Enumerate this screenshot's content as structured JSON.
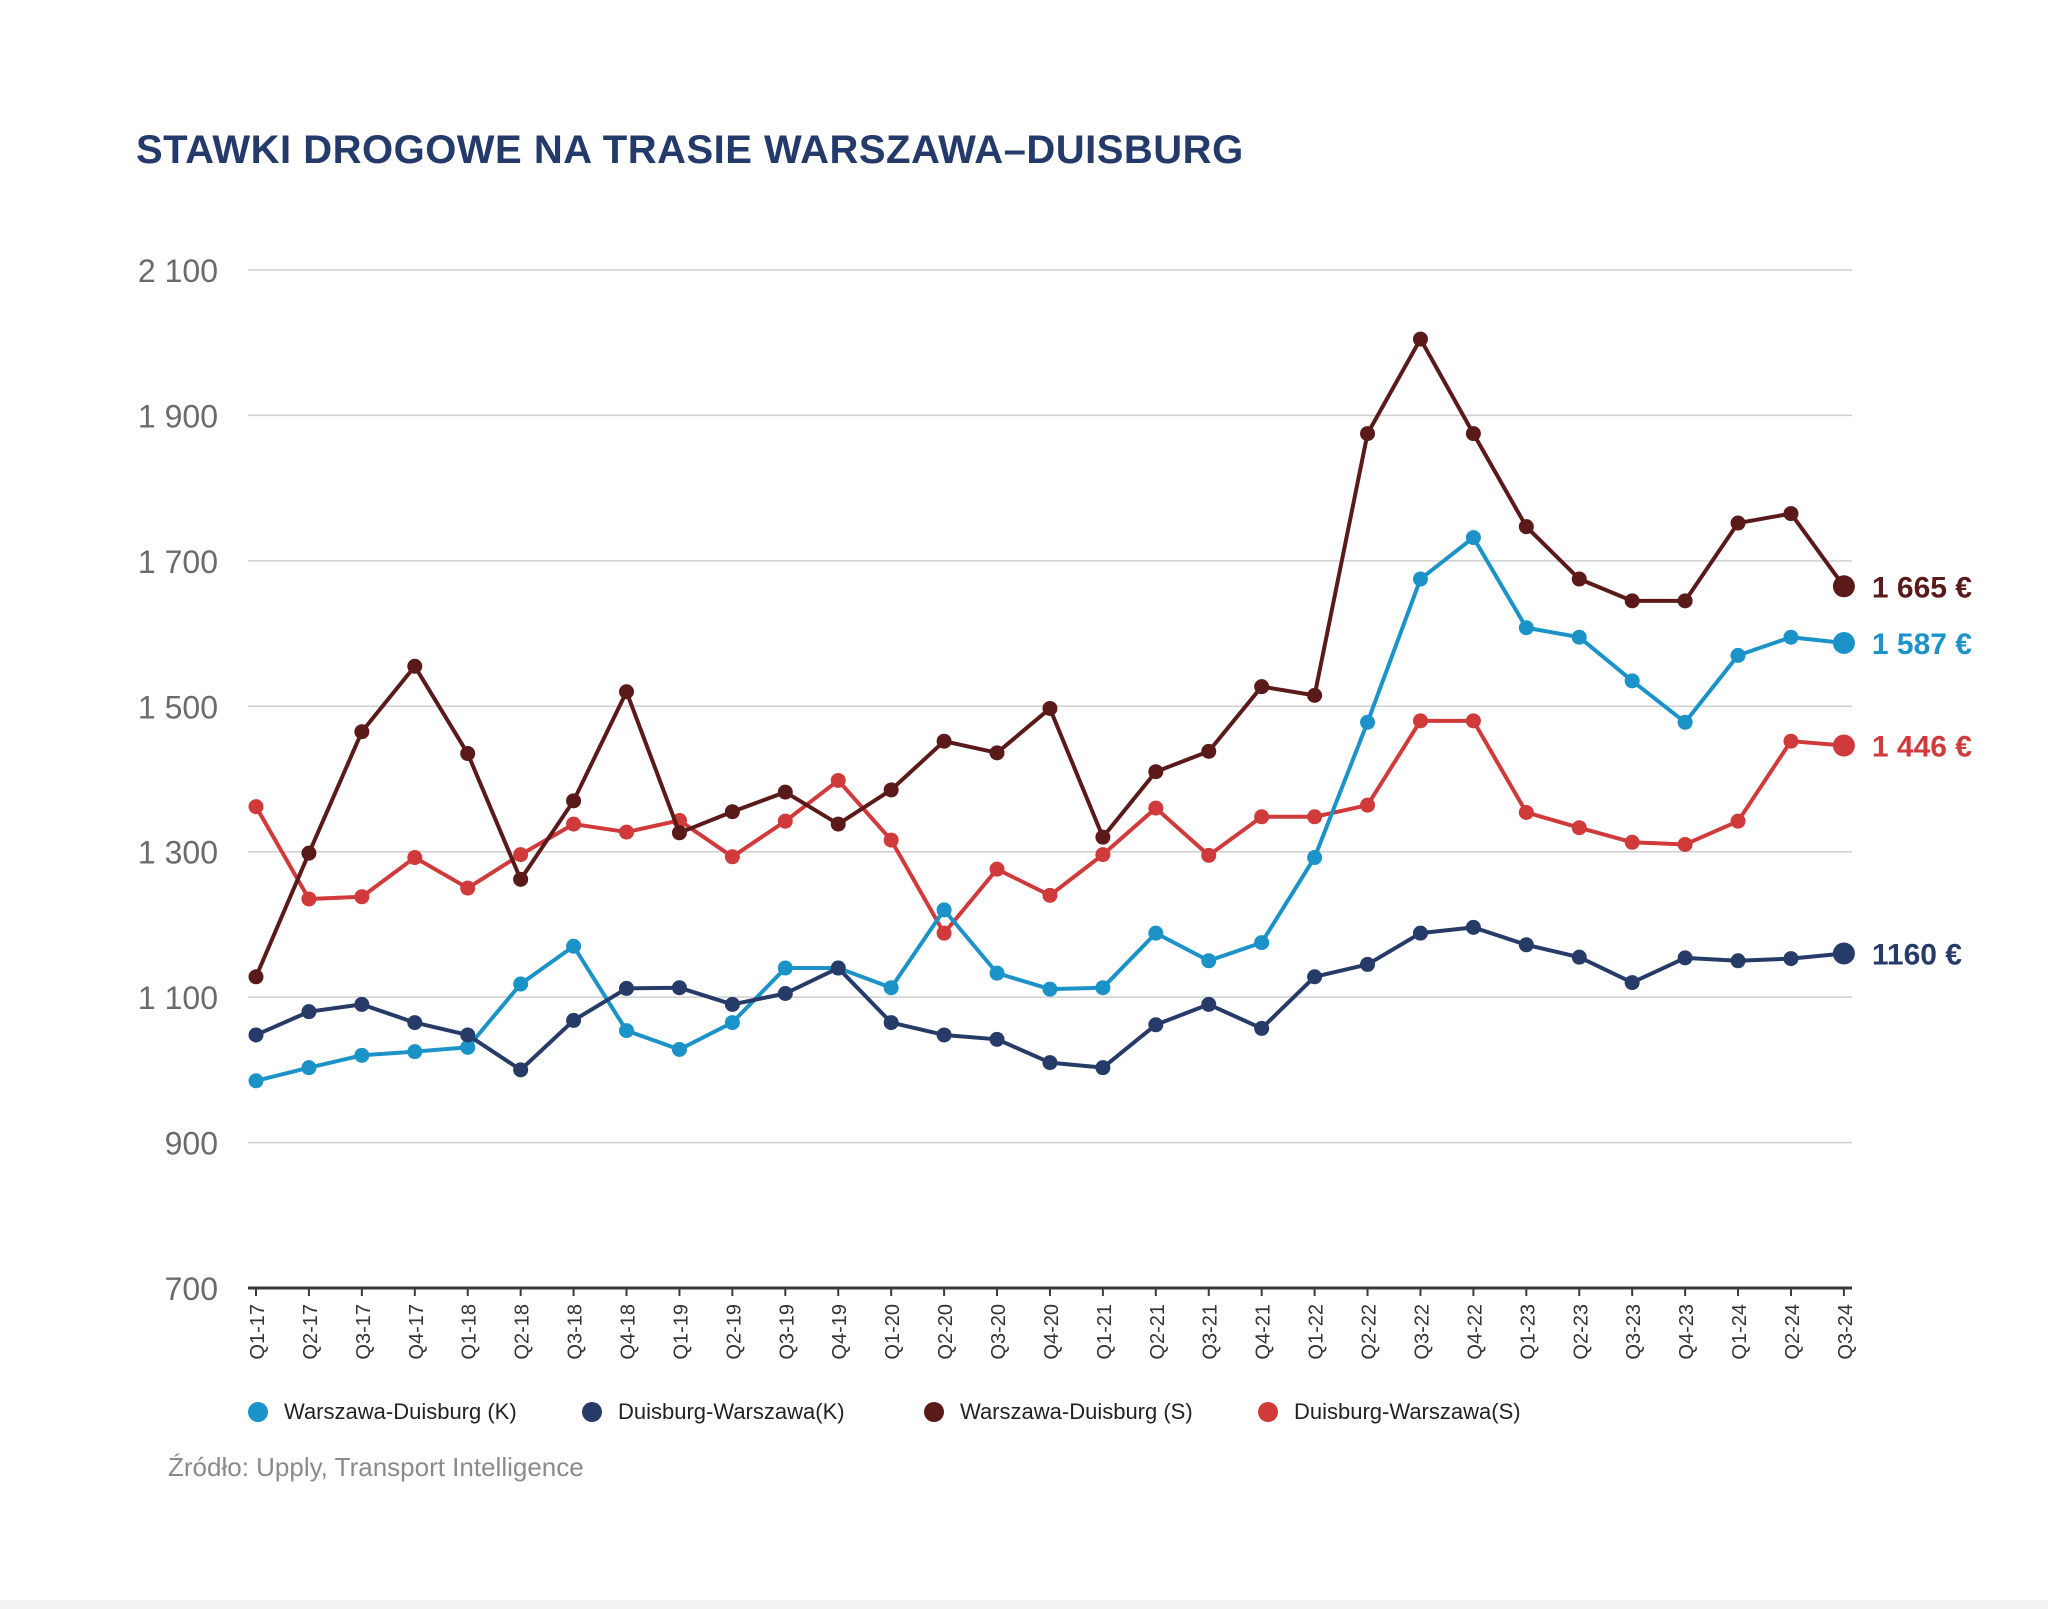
{
  "title": "STAWKI DROGOWE NA TRASIE WARSZAWA–DUISBURG",
  "source": "Źródło: Upply, Transport Intelligence",
  "legend": [
    {
      "label": "Warszawa-Duisburg (K)",
      "color": "#1B93C8"
    },
    {
      "label": "Duisburg-Warszawa(K)",
      "color": "#263B68"
    },
    {
      "label": "Warszawa-Duisburg (S)",
      "color": "#5B1A1A"
    },
    {
      "label": "Duisburg-Warszawa(S)",
      "color": "#D13A3A"
    }
  ],
  "chart_data": {
    "type": "line",
    "title": "STAWKI DROGOWE NA TRASIE WARSZAWA–DUISBURG",
    "xlabel": "",
    "ylabel": "",
    "ylim": [
      700,
      2100
    ],
    "yticks": [
      700,
      900,
      1100,
      1300,
      1500,
      1700,
      1900,
      2100
    ],
    "ytick_labels": [
      "700",
      "900",
      "1 100",
      "1 300",
      "1 500",
      "1 700",
      "1 900",
      "2 100"
    ],
    "grid": true,
    "legend_position": "bottom",
    "categories": [
      "Q1-17",
      "Q2-17",
      "Q3-17",
      "Q4-17",
      "Q1-18",
      "Q2-18",
      "Q3-18",
      "Q4-18",
      "Q1-19",
      "Q2-19",
      "Q3-19",
      "Q4-19",
      "Q1-20",
      "Q2-20",
      "Q3-20",
      "Q4-20",
      "Q1-21",
      "Q2-21",
      "Q3-21",
      "Q4-21",
      "Q1-22",
      "Q2-22",
      "Q3-22",
      "Q4-22",
      "Q1-23",
      "Q2-23",
      "Q3-23",
      "Q4-23",
      "Q1-24",
      "Q2-24",
      "Q3-24"
    ],
    "series": [
      {
        "name": "Warszawa-Duisburg (K)",
        "color": "#1B93C8",
        "end_label": "1 587 €",
        "values": [
          985,
          1003,
          1020,
          1025,
          1031,
          1118,
          1170,
          1054,
          1028,
          1065,
          1140,
          1140,
          1113,
          1220,
          1133,
          1111,
          1113,
          1188,
          1150,
          1175,
          1292,
          1478,
          1675,
          1732,
          1608,
          1595,
          1535,
          1478,
          1570,
          1595,
          1587
        ]
      },
      {
        "name": "Duisburg-Warszawa(K)",
        "color": "#263B68",
        "end_label": "1160 €",
        "values": [
          1048,
          1080,
          1090,
          1065,
          1048,
          1000,
          1068,
          1112,
          1113,
          1090,
          1105,
          1140,
          1065,
          1048,
          1042,
          1010,
          1003,
          1062,
          1090,
          1057,
          1128,
          1145,
          1188,
          1196,
          1172,
          1155,
          1120,
          1154,
          1150,
          1153,
          1160
        ]
      },
      {
        "name": "Warszawa-Duisburg (S)",
        "color": "#5B1A1A",
        "end_label": "1 665 €",
        "values": [
          1128,
          1298,
          1465,
          1555,
          1435,
          1262,
          1370,
          1520,
          1326,
          1355,
          1382,
          1338,
          1385,
          1452,
          1436,
          1497,
          1320,
          1410,
          1438,
          1527,
          1515,
          1875,
          2005,
          1875,
          1747,
          1675,
          1645,
          1645,
          1752,
          1765,
          1665
        ]
      },
      {
        "name": "Duisburg-Warszawa(S)",
        "color": "#D13A3A",
        "end_label": "1 446 €",
        "values": [
          1362,
          1235,
          1238,
          1292,
          1250,
          1296,
          1338,
          1327,
          1343,
          1293,
          1342,
          1398,
          1316,
          1188,
          1276,
          1240,
          1296,
          1360,
          1295,
          1348,
          1348,
          1364,
          1480,
          1480,
          1354,
          1333,
          1313,
          1310,
          1342,
          1452,
          1446
        ]
      }
    ]
  }
}
